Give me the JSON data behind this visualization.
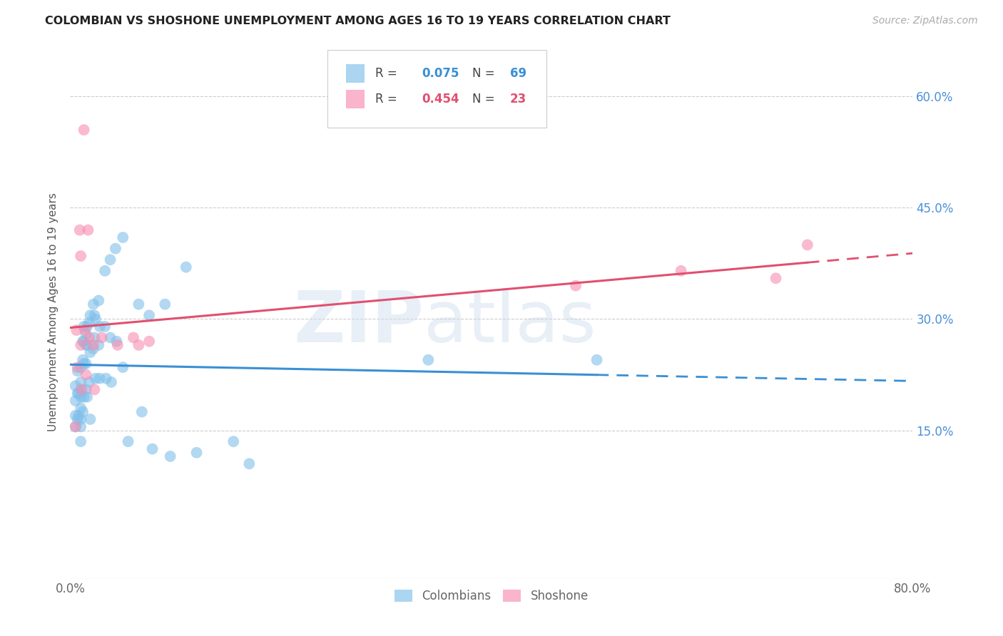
{
  "title": "COLOMBIAN VS SHOSHONE UNEMPLOYMENT AMONG AGES 16 TO 19 YEARS CORRELATION CHART",
  "source": "Source: ZipAtlas.com",
  "xlabel_ticks": [
    "0.0%",
    "",
    "",
    "",
    "",
    "",
    "",
    "",
    "80.0%"
  ],
  "xlabel_vals": [
    0.0,
    0.1,
    0.2,
    0.3,
    0.4,
    0.5,
    0.6,
    0.7,
    0.8
  ],
  "ylabel_ticks": [
    "15.0%",
    "30.0%",
    "45.0%",
    "60.0%"
  ],
  "ylabel_vals": [
    0.15,
    0.3,
    0.45,
    0.6
  ],
  "xlim": [
    0.0,
    0.8
  ],
  "ylim": [
    -0.05,
    0.67
  ],
  "colombian_color": "#7fbfea",
  "shoshone_color": "#f88db0",
  "trend_colombian_color": "#3a8fd4",
  "trend_shoshone_color": "#e05070",
  "colombian_x": [
    0.005,
    0.005,
    0.005,
    0.005,
    0.007,
    0.007,
    0.007,
    0.008,
    0.008,
    0.01,
    0.01,
    0.01,
    0.01,
    0.01,
    0.01,
    0.01,
    0.01,
    0.012,
    0.012,
    0.012,
    0.013,
    0.013,
    0.013,
    0.013,
    0.015,
    0.015,
    0.015,
    0.015,
    0.016,
    0.016,
    0.016,
    0.018,
    0.018,
    0.019,
    0.019,
    0.019,
    0.022,
    0.022,
    0.023,
    0.023,
    0.024,
    0.024,
    0.027,
    0.027,
    0.028,
    0.028,
    0.033,
    0.033,
    0.034,
    0.038,
    0.038,
    0.039,
    0.043,
    0.044,
    0.05,
    0.05,
    0.055,
    0.065,
    0.068,
    0.075,
    0.078,
    0.09,
    0.095,
    0.11,
    0.12,
    0.155,
    0.17,
    0.34,
    0.5
  ],
  "colombian_y": [
    0.21,
    0.19,
    0.17,
    0.155,
    0.23,
    0.2,
    0.165,
    0.2,
    0.17,
    0.235,
    0.215,
    0.205,
    0.195,
    0.18,
    0.165,
    0.155,
    0.135,
    0.27,
    0.245,
    0.175,
    0.29,
    0.27,
    0.24,
    0.195,
    0.28,
    0.265,
    0.24,
    0.205,
    0.29,
    0.265,
    0.195,
    0.295,
    0.215,
    0.305,
    0.255,
    0.165,
    0.32,
    0.26,
    0.305,
    0.275,
    0.3,
    0.22,
    0.325,
    0.265,
    0.29,
    0.22,
    0.365,
    0.29,
    0.22,
    0.38,
    0.275,
    0.215,
    0.395,
    0.27,
    0.41,
    0.235,
    0.135,
    0.32,
    0.175,
    0.305,
    0.125,
    0.32,
    0.115,
    0.37,
    0.12,
    0.135,
    0.105,
    0.245,
    0.245
  ],
  "shoshone_x": [
    0.005,
    0.006,
    0.007,
    0.009,
    0.01,
    0.01,
    0.011,
    0.013,
    0.014,
    0.015,
    0.017,
    0.018,
    0.022,
    0.023,
    0.03,
    0.045,
    0.06,
    0.065,
    0.075,
    0.48,
    0.58,
    0.67,
    0.7
  ],
  "shoshone_y": [
    0.155,
    0.285,
    0.235,
    0.42,
    0.385,
    0.265,
    0.205,
    0.555,
    0.285,
    0.225,
    0.42,
    0.275,
    0.265,
    0.205,
    0.275,
    0.265,
    0.275,
    0.265,
    0.27,
    0.345,
    0.365,
    0.355,
    0.4
  ]
}
